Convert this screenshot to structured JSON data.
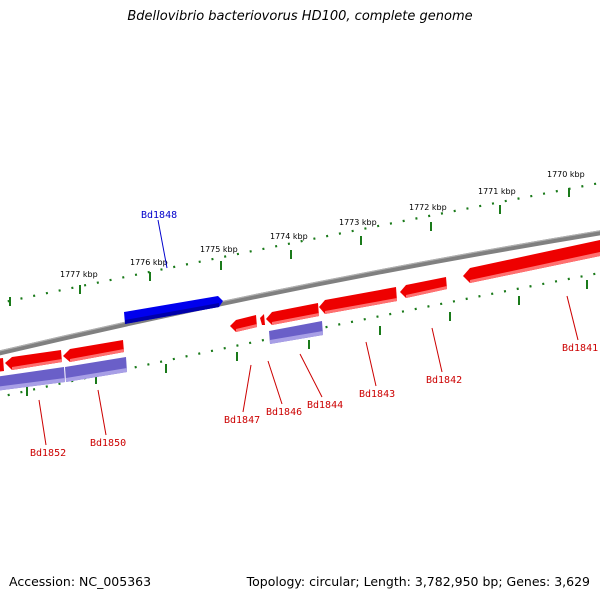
{
  "title": "Bdellovibrio bacteriovorus HD100, complete genome",
  "footer": {
    "accession": "Accession: NC_005363",
    "summary": "Topology: circular; Length: 3,782,950 bp; Genes: 3,629"
  },
  "colors": {
    "forward_gene": "#0000ee",
    "reverse_gene": "#ee0000",
    "reverse_rna_track": "#6a5fc8",
    "backbone": "#808080",
    "tick": "#1a7a1a",
    "blue_label": "#0000cc",
    "red_label": "#cc0000"
  },
  "scale_labels": [
    "1770 kbp",
    "1771 kbp",
    "1772 kbp",
    "1773 kbp",
    "1774 kbp",
    "1775 kbp",
    "1776 kbp",
    "1777 kbp"
  ],
  "gene_labels": [
    {
      "text": "Bd1848",
      "strand": "forward"
    },
    {
      "text": "Bd1841",
      "strand": "reverse"
    },
    {
      "text": "Bd1842",
      "strand": "reverse"
    },
    {
      "text": "Bd1843",
      "strand": "reverse"
    },
    {
      "text": "Bd1844",
      "strand": "reverse"
    },
    {
      "text": "Bd1846",
      "strand": "reverse"
    },
    {
      "text": "Bd1847",
      "strand": "reverse"
    },
    {
      "text": "Bd1850",
      "strand": "reverse"
    },
    {
      "text": "Bd1852",
      "strand": "reverse"
    }
  ]
}
